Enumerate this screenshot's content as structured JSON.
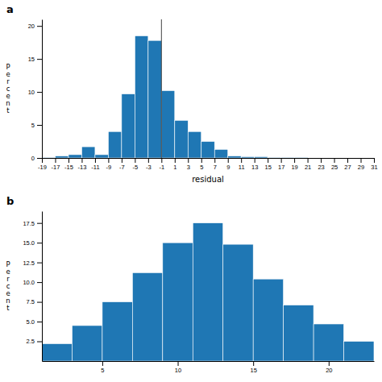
{
  "chart_data": [
    {
      "type": "histogram",
      "title": "a",
      "xlabel": "residual",
      "ylabel": "P\ne\nr\nc\ne\nn\nt",
      "bins": [
        -19,
        -17,
        -15,
        -13,
        -11,
        -9,
        -7,
        -5,
        -3,
        -1,
        1,
        3,
        5,
        7,
        9,
        11,
        13,
        15,
        17,
        19,
        21,
        23,
        25,
        27,
        29,
        31
      ],
      "values": [
        0.1,
        0.3,
        0.5,
        1.7,
        0.5,
        4.0,
        9.7,
        18.5,
        17.8,
        10.2,
        5.7,
        4.0,
        2.5,
        1.3,
        0.3,
        0.2,
        0.2,
        0.1,
        0.1,
        0.1,
        0.0,
        0.0,
        0.0,
        0.0,
        0.0
      ],
      "xlim": [
        -19,
        31
      ],
      "xticks": [
        -19,
        -17,
        -15,
        -13,
        -11,
        -9,
        -7,
        -5,
        -3,
        -1,
        1,
        3,
        5,
        7,
        9,
        11,
        13,
        15,
        17,
        19,
        21,
        23,
        25,
        27,
        29,
        31
      ],
      "ylim": [
        0,
        21
      ],
      "yticks": [
        0,
        5,
        10,
        15,
        20
      ],
      "vline_x": -1
    },
    {
      "type": "histogram",
      "title": "b",
      "ylabel": "P\ne\nr\nc\ne\nn\nt",
      "bins": [
        1,
        3,
        5,
        7,
        9,
        11,
        13,
        15,
        17,
        19,
        21,
        23
      ],
      "values": [
        2.2,
        4.5,
        7.5,
        11.2,
        15.0,
        17.5,
        14.8,
        10.4,
        7.1,
        4.7,
        2.5
      ],
      "xlim": [
        1,
        23
      ],
      "xticks": [
        5,
        10,
        15,
        20
      ],
      "ylim": [
        0,
        19
      ],
      "yticks": [
        2.5,
        {
          "value": 5.0,
          "label": "5.0"
        },
        7.5,
        {
          "value": 10.0,
          "label": "10.0"
        },
        12.5,
        {
          "value": 15.0,
          "label": "15.0"
        },
        17.5
      ]
    }
  ]
}
